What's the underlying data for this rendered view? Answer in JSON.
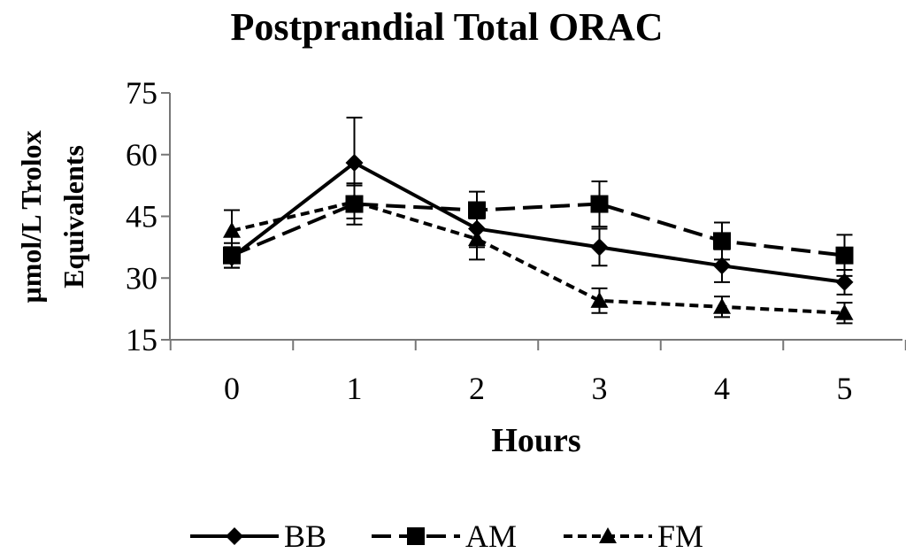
{
  "chart_data": {
    "type": "line",
    "title": "Postprandial Total ORAC",
    "xlabel": "Hours",
    "ylabel_lines": [
      "µmol/L Trolox",
      "Equivalents"
    ],
    "x": [
      0,
      1,
      2,
      3,
      4,
      5
    ],
    "x_tick_labels": [
      "0",
      "1",
      "2",
      "3",
      "4",
      "5"
    ],
    "ylim": [
      15,
      75
    ],
    "y_ticks": [
      15,
      30,
      45,
      60,
      75
    ],
    "y_tick_labels": [
      "15",
      "30",
      "45",
      "60",
      "75"
    ],
    "grid": false,
    "legend_position": "bottom",
    "series": [
      {
        "name": "BB",
        "marker": "diamond",
        "line_style": "solid",
        "color": "#000000",
        "values": [
          35,
          58,
          42,
          37.5,
          33,
          29
        ],
        "error": [
          2.5,
          11,
          4.5,
          4.5,
          4,
          3
        ]
      },
      {
        "name": "AM",
        "marker": "square",
        "line_style": "dash",
        "color": "#000000",
        "values": [
          35.5,
          48,
          46.5,
          48,
          39,
          35.5
        ],
        "error": [
          3,
          5,
          4.5,
          5.5,
          4.5,
          5
        ]
      },
      {
        "name": "FM",
        "marker": "triangle",
        "line_style": "short-dash",
        "color": "#000000",
        "values": [
          41.5,
          48.5,
          39.5,
          24.5,
          23,
          21.5
        ],
        "error": [
          5,
          4,
          5,
          3,
          2.5,
          2.5
        ]
      }
    ]
  }
}
